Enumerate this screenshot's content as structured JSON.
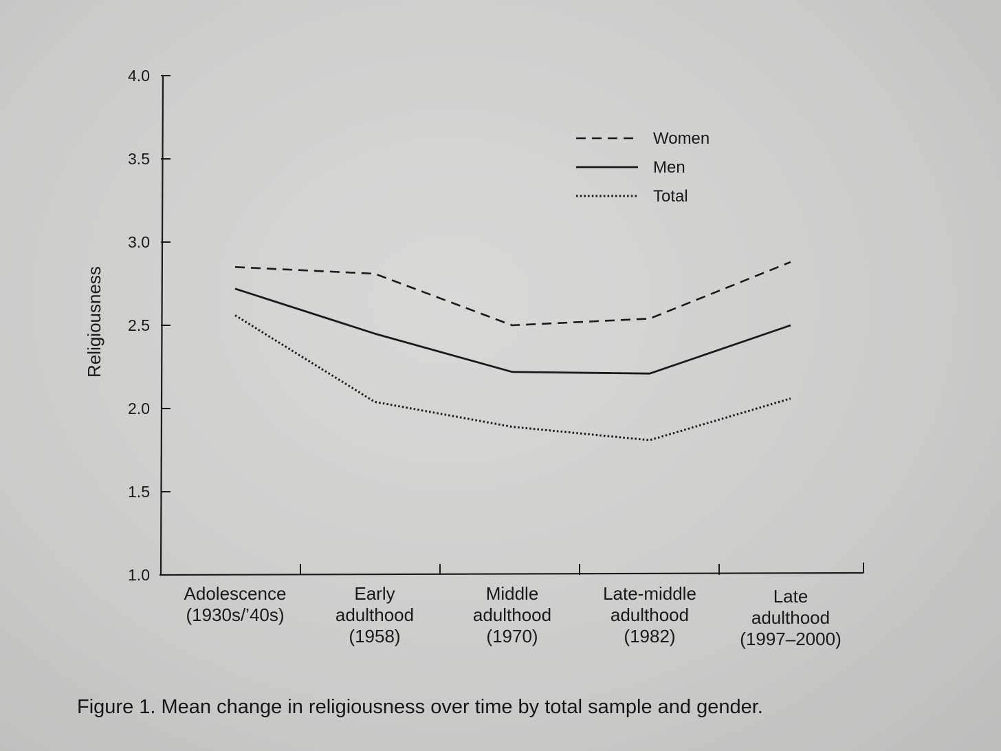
{
  "caption": "Figure 1.  Mean change in religiousness over time by total sample and gender.",
  "colors": {
    "ink": "#1a1a1a",
    "paper": "#d4d4d3"
  },
  "chart_data": {
    "type": "line",
    "title": "",
    "xlabel": "",
    "ylabel": "Religiousness",
    "ylim": [
      1.0,
      4.0
    ],
    "yticks": [
      "1.0",
      "1.5",
      "2.0",
      "2.5",
      "3.0",
      "3.5",
      "4.0"
    ],
    "grid": false,
    "legend_position": "top-right",
    "categories": [
      [
        "Adolescence",
        "(1930s/’40s)"
      ],
      [
        "Early",
        "adulthood",
        "(1958)"
      ],
      [
        "Middle",
        "adulthood",
        "(1970)"
      ],
      [
        "Late-middle",
        "adulthood",
        "(1982)"
      ],
      [
        "Late",
        "adulthood",
        "(1997–2000)"
      ]
    ],
    "series": [
      {
        "name": "Women",
        "style": "dashed",
        "values": [
          2.85,
          2.81,
          2.5,
          2.54,
          2.88
        ]
      },
      {
        "name": "Men",
        "style": "solid",
        "values": [
          2.72,
          2.45,
          2.22,
          2.21,
          2.5
        ]
      },
      {
        "name": "Total",
        "style": "dotted",
        "values": [
          2.56,
          2.04,
          1.89,
          1.81,
          2.06
        ]
      }
    ]
  }
}
